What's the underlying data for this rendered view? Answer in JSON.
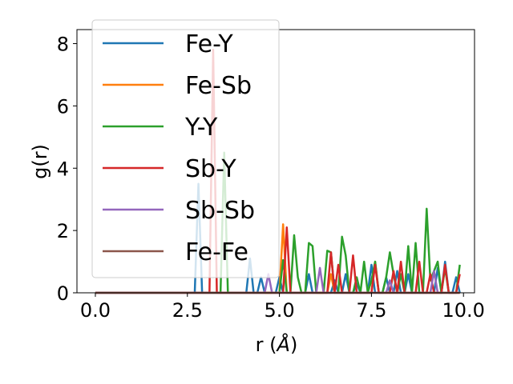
{
  "chart_data": {
    "type": "line",
    "title": "",
    "xlabel": "r (",
    "xlabel_symbol": "Å",
    "xlabel_end": ")",
    "ylabel": "g(r)",
    "xlim": [
      -0.5,
      10.3
    ],
    "ylim": [
      0,
      8.45
    ],
    "xticks": [
      0.0,
      2.5,
      5.0,
      7.5,
      10.0
    ],
    "xtick_labels": [
      "0.0",
      "2.5",
      "5.0",
      "7.5",
      "10.0"
    ],
    "yticks": [
      0,
      2,
      4,
      6,
      8
    ],
    "ytick_labels": [
      "0",
      "2",
      "4",
      "6",
      "8"
    ],
    "grid": false,
    "legend_position": "upper-left",
    "x": [
      0.0,
      0.1,
      0.2,
      0.3,
      0.4,
      0.5,
      0.6,
      0.7,
      0.8,
      0.9,
      1.0,
      1.1,
      1.2,
      1.3,
      1.4,
      1.5,
      1.6,
      1.7,
      1.8,
      1.9,
      2.0,
      2.1,
      2.2,
      2.3,
      2.4,
      2.5,
      2.6,
      2.7,
      2.8,
      2.9,
      3.0,
      3.1,
      3.2,
      3.3,
      3.4,
      3.5,
      3.6,
      3.7,
      3.8,
      3.9,
      4.0,
      4.1,
      4.2,
      4.3,
      4.4,
      4.5,
      4.6,
      4.7,
      4.8,
      4.9,
      5.0,
      5.1,
      5.2,
      5.3,
      5.4,
      5.5,
      5.6,
      5.7,
      5.8,
      5.9,
      6.0,
      6.1,
      6.2,
      6.3,
      6.4,
      6.5,
      6.6,
      6.7,
      6.8,
      6.9,
      7.0,
      7.1,
      7.2,
      7.3,
      7.4,
      7.5,
      7.6,
      7.7,
      7.8,
      7.9,
      8.0,
      8.1,
      8.2,
      8.3,
      8.4,
      8.5,
      8.6,
      8.7,
      8.8,
      8.9,
      9.0,
      9.1,
      9.2,
      9.3,
      9.4,
      9.5,
      9.6,
      9.7,
      9.8,
      9.9
    ],
    "series": [
      {
        "name": "Fe-Y",
        "color": "#1f77b4",
        "values": [
          0,
          0,
          0,
          0,
          0,
          0,
          0,
          0,
          0,
          0,
          0,
          0,
          0,
          0,
          0,
          0,
          0,
          0,
          0,
          0,
          0,
          0,
          0,
          0,
          0,
          0,
          0,
          0,
          3.5,
          0,
          0,
          0,
          0,
          0,
          0,
          0,
          0,
          0,
          0,
          0,
          0,
          0,
          1.1,
          0,
          0,
          0.5,
          0,
          0,
          0,
          0,
          0.5,
          0,
          0,
          0,
          0,
          0,
          0,
          0,
          0.6,
          0,
          0,
          0,
          0,
          0,
          0,
          0.4,
          0,
          0,
          0.6,
          0,
          0,
          0.3,
          0,
          0,
          0,
          0.9,
          0,
          0,
          0,
          0.5,
          0,
          0,
          0.7,
          0,
          0,
          0.6,
          0,
          0,
          0,
          0,
          0,
          0,
          0,
          0.8,
          0,
          1.0,
          0,
          0,
          0.5,
          0
        ]
      },
      {
        "name": "Fe-Sb",
        "color": "#ff7f0e",
        "values": [
          0,
          0,
          0,
          0,
          0,
          0,
          0,
          0,
          0,
          0,
          0,
          0,
          0,
          0,
          0,
          0,
          0,
          0,
          0,
          0,
          0,
          0,
          0,
          0,
          0,
          0,
          0,
          0,
          0,
          0,
          0,
          0,
          0,
          0,
          0,
          0,
          0,
          0,
          0,
          0,
          0,
          0,
          0,
          0,
          0,
          0,
          0,
          0,
          0,
          0,
          0,
          2.2,
          0,
          0,
          0,
          0,
          0,
          0,
          0,
          0,
          0,
          0,
          0,
          0,
          0.6,
          0,
          0,
          0,
          0,
          0,
          0,
          0,
          0,
          0,
          0,
          0,
          1.0,
          0,
          0,
          0,
          0,
          0,
          0,
          0,
          0,
          0,
          0,
          0,
          0,
          0,
          0,
          0,
          0,
          0,
          0,
          0,
          0,
          0,
          0,
          0
        ]
      },
      {
        "name": "Y-Y",
        "color": "#2ca02c",
        "values": [
          0,
          0,
          0,
          0,
          0,
          0,
          0,
          0,
          0,
          0,
          0,
          0,
          0,
          0,
          0,
          0,
          0,
          0,
          0,
          0,
          0,
          0,
          0,
          0,
          0,
          0,
          0,
          0,
          0,
          0,
          0,
          0,
          0,
          0,
          0,
          4.5,
          0,
          0,
          0,
          0,
          0,
          0,
          0,
          0,
          0,
          0,
          0,
          0,
          0,
          0,
          0,
          1.05,
          0,
          0,
          1.85,
          0.5,
          0,
          0,
          1.6,
          1.5,
          0,
          0,
          0,
          1.35,
          1.3,
          0,
          0,
          1.8,
          1.2,
          0,
          0,
          0.5,
          0,
          1.0,
          0,
          0.4,
          1.0,
          0,
          0,
          0.5,
          1.3,
          0.6,
          0,
          0.6,
          0,
          1.5,
          0,
          1.6,
          0,
          0,
          2.7,
          0.4,
          0.7,
          1.0,
          0,
          0.8,
          0,
          0,
          0,
          0.9
        ]
      },
      {
        "name": "Sb-Y",
        "color": "#d62728",
        "values": [
          0,
          0,
          0,
          0,
          0,
          0,
          0,
          0,
          0,
          0,
          0,
          0,
          0,
          0,
          0,
          0,
          0,
          0,
          0,
          0,
          0,
          0,
          0,
          0,
          0,
          0,
          0,
          0,
          0,
          0,
          0,
          0,
          7.8,
          0,
          0,
          0,
          0,
          0,
          0,
          0,
          0,
          0,
          0,
          0,
          0,
          0,
          0,
          0,
          0,
          0,
          0,
          0,
          2.1,
          0,
          0,
          0,
          0,
          0,
          0,
          0,
          0,
          0,
          0,
          0,
          1.3,
          0,
          0.9,
          0,
          0,
          0,
          1.2,
          0,
          0,
          0,
          0,
          0,
          0.9,
          0,
          0,
          0,
          0,
          0.7,
          0,
          1.0,
          0,
          0,
          0,
          0,
          1.0,
          0,
          0,
          0.6,
          0,
          0,
          0,
          0.9,
          0,
          0,
          0,
          0.6
        ]
      },
      {
        "name": "Sb-Sb",
        "color": "#9467bd",
        "values": [
          0,
          0,
          0,
          0,
          0,
          0,
          0,
          0,
          0,
          0,
          0,
          0,
          0,
          0,
          0,
          0,
          0,
          0,
          0,
          0,
          0,
          0,
          0,
          0,
          0,
          0,
          0,
          0,
          0,
          0,
          0,
          0,
          0,
          0,
          0,
          0,
          0,
          0,
          0,
          0,
          0,
          0,
          0,
          0,
          0,
          0,
          0,
          0.6,
          0,
          0,
          0,
          0,
          0,
          0,
          0,
          0,
          0,
          0,
          0,
          0,
          0,
          0.8,
          0,
          0,
          0,
          0,
          0,
          0,
          0,
          0,
          0,
          0,
          0,
          0,
          0,
          0,
          0,
          0,
          0,
          0,
          0.4,
          0,
          0,
          0,
          0,
          0,
          0,
          0,
          0,
          0,
          0,
          0,
          0.7,
          0,
          0,
          0,
          0,
          0,
          0,
          0
        ]
      },
      {
        "name": "Fe-Fe",
        "color": "#8c564b",
        "values": [
          0,
          0,
          0,
          0,
          0,
          0,
          0,
          0,
          0,
          0,
          0,
          0,
          0,
          0,
          0,
          0,
          0,
          0,
          0,
          0,
          0,
          0,
          0,
          0,
          0,
          0,
          0,
          0,
          0,
          0,
          0,
          0,
          0,
          0,
          0,
          0,
          0,
          0,
          0,
          0,
          0,
          0,
          0,
          0,
          0,
          0,
          0,
          0,
          0,
          0,
          0,
          0,
          0,
          0,
          0,
          0,
          0,
          0,
          0,
          0,
          0,
          0,
          0,
          0,
          0,
          0,
          0,
          0,
          0,
          0,
          0,
          0,
          0,
          0,
          0,
          0,
          0,
          0,
          0,
          0,
          0,
          0,
          0,
          0,
          0,
          0,
          0,
          0,
          0,
          0,
          0,
          0,
          0,
          0,
          0,
          0,
          0,
          0,
          0,
          0
        ]
      }
    ]
  }
}
